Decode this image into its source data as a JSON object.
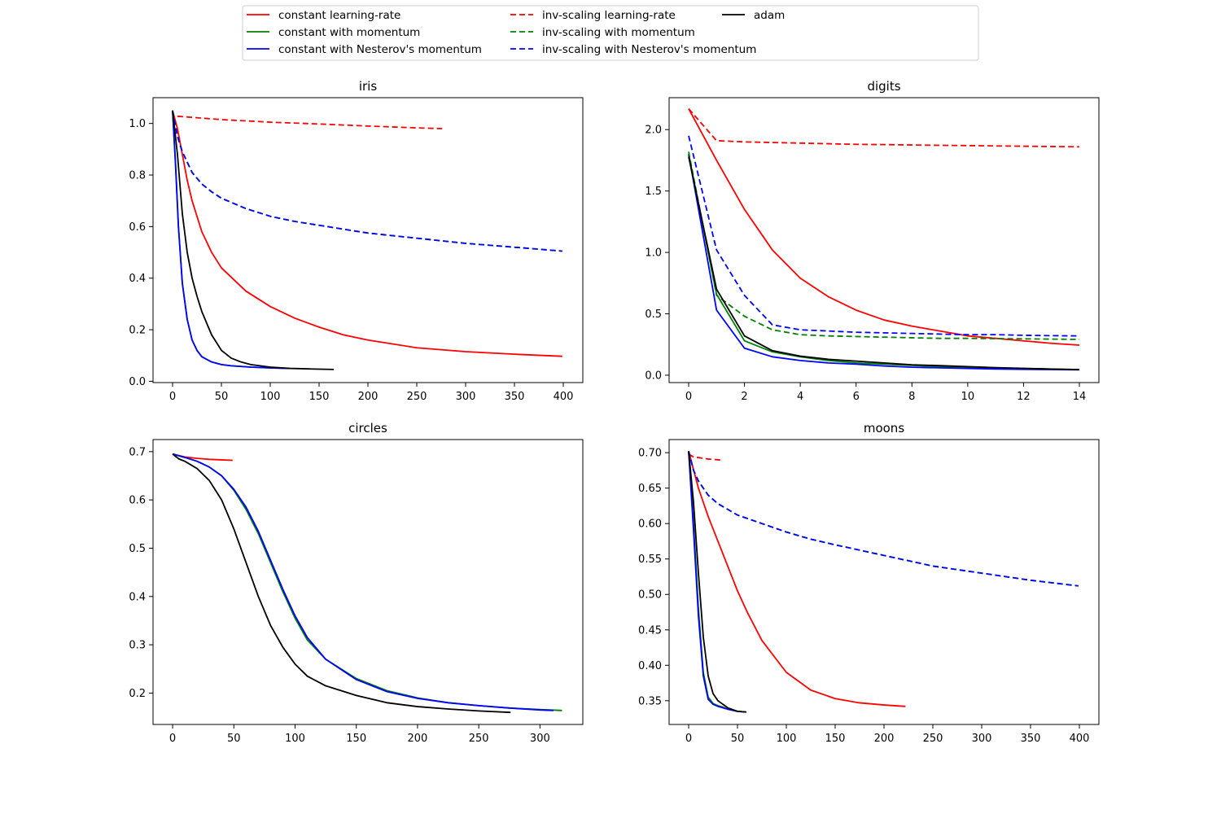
{
  "chart_data": [
    {
      "type": "line",
      "title": "iris",
      "xlabel": "",
      "ylabel": "",
      "xlim": [
        -20,
        420
      ],
      "ylim": [
        -0.005,
        1.1
      ],
      "xticks": [
        0,
        50,
        100,
        150,
        200,
        250,
        300,
        350,
        400
      ],
      "yticks": [
        0.0,
        0.2,
        0.4,
        0.6,
        0.8,
        1.0
      ],
      "ytick_decimals": 1,
      "series": [
        {
          "style": "constant-lr",
          "x": [
            0,
            5,
            10,
            15,
            20,
            30,
            40,
            50,
            75,
            100,
            125,
            150,
            175,
            200,
            250,
            300,
            350,
            399
          ],
          "y": [
            1.05,
            0.98,
            0.88,
            0.78,
            0.7,
            0.58,
            0.5,
            0.44,
            0.35,
            0.29,
            0.245,
            0.21,
            0.18,
            0.16,
            0.13,
            0.115,
            0.105,
            0.097
          ]
        },
        {
          "style": "const-mom",
          "x": [
            0,
            3,
            6,
            10,
            15,
            20,
            25,
            30,
            40,
            50,
            60,
            80,
            100,
            120
          ],
          "y": [
            1.05,
            0.85,
            0.6,
            0.38,
            0.24,
            0.16,
            0.12,
            0.095,
            0.075,
            0.065,
            0.06,
            0.055,
            0.052,
            0.05
          ]
        },
        {
          "style": "const-nest",
          "x": [
            0,
            3,
            6,
            10,
            15,
            20,
            25,
            30,
            40,
            50,
            60,
            80,
            100,
            120
          ],
          "y": [
            1.05,
            0.84,
            0.6,
            0.38,
            0.24,
            0.16,
            0.12,
            0.095,
            0.075,
            0.065,
            0.06,
            0.055,
            0.052,
            0.05
          ]
        },
        {
          "style": "inv-lr",
          "x": [
            5,
            50,
            100,
            150,
            200,
            250,
            276
          ],
          "y": [
            1.028,
            1.015,
            1.005,
            0.998,
            0.99,
            0.983,
            0.98
          ]
        },
        {
          "style": "inv-mom",
          "x": [
            0,
            5,
            10,
            15,
            20,
            30,
            40,
            50,
            75,
            100,
            125,
            150,
            200,
            250,
            300,
            350,
            399
          ],
          "y": [
            1.05,
            0.95,
            0.89,
            0.85,
            0.81,
            0.765,
            0.735,
            0.71,
            0.67,
            0.64,
            0.62,
            0.605,
            0.575,
            0.555,
            0.535,
            0.52,
            0.505
          ]
        },
        {
          "style": "inv-nest",
          "x": [
            0,
            5,
            10,
            15,
            20,
            30,
            40,
            50,
            75,
            100,
            125,
            150,
            200,
            250,
            300,
            350,
            399
          ],
          "y": [
            1.05,
            0.95,
            0.89,
            0.85,
            0.81,
            0.765,
            0.735,
            0.71,
            0.67,
            0.64,
            0.62,
            0.605,
            0.575,
            0.555,
            0.535,
            0.52,
            0.505
          ]
        },
        {
          "style": "adam",
          "x": [
            0,
            5,
            10,
            15,
            20,
            25,
            30,
            40,
            50,
            60,
            70,
            80,
            100,
            120,
            140,
            165
          ],
          "y": [
            1.05,
            0.88,
            0.65,
            0.5,
            0.4,
            0.33,
            0.27,
            0.18,
            0.12,
            0.09,
            0.075,
            0.065,
            0.055,
            0.05,
            0.048,
            0.046
          ]
        }
      ]
    },
    {
      "type": "line",
      "title": "digits",
      "xlabel": "",
      "ylabel": "",
      "xlim": [
        -0.7,
        14.7
      ],
      "ylim": [
        -0.06,
        2.26
      ],
      "xticks": [
        0,
        2,
        4,
        6,
        8,
        10,
        12,
        14
      ],
      "yticks": [
        0.0,
        0.5,
        1.0,
        1.5,
        2.0
      ],
      "ytick_decimals": 1,
      "series": [
        {
          "style": "constant-lr",
          "x": [
            0,
            1,
            2,
            3,
            4,
            5,
            6,
            7,
            8,
            9,
            10,
            11,
            12,
            13,
            14
          ],
          "y": [
            2.17,
            1.75,
            1.35,
            1.02,
            0.79,
            0.64,
            0.53,
            0.45,
            0.4,
            0.36,
            0.32,
            0.3,
            0.28,
            0.26,
            0.245
          ]
        },
        {
          "style": "const-mom",
          "x": [
            0,
            1,
            2,
            3,
            4,
            5,
            6,
            7,
            8,
            9,
            10,
            11,
            12,
            13,
            14
          ],
          "y": [
            1.8,
            0.66,
            0.28,
            0.19,
            0.15,
            0.12,
            0.1,
            0.09,
            0.08,
            0.07,
            0.065,
            0.06,
            0.055,
            0.05,
            0.045
          ]
        },
        {
          "style": "const-nest",
          "x": [
            0,
            1,
            2,
            3,
            4,
            5,
            6,
            7,
            8,
            9,
            10,
            11,
            12,
            13,
            14
          ],
          "y": [
            1.8,
            0.53,
            0.22,
            0.15,
            0.12,
            0.1,
            0.09,
            0.075,
            0.065,
            0.06,
            0.055,
            0.05,
            0.048,
            0.046,
            0.044
          ]
        },
        {
          "style": "inv-lr",
          "x": [
            0,
            1,
            2,
            3,
            4,
            5,
            6,
            7,
            8,
            9,
            10,
            11,
            12,
            13,
            14
          ],
          "y": [
            2.17,
            1.91,
            1.9,
            1.895,
            1.89,
            1.885,
            1.88,
            1.878,
            1.875,
            1.872,
            1.87,
            1.867,
            1.865,
            1.862,
            1.86
          ]
        },
        {
          "style": "inv-mom",
          "x": [
            0,
            1,
            2,
            3,
            4,
            5,
            6,
            7,
            8,
            9,
            10,
            11,
            12,
            13,
            14
          ],
          "y": [
            1.82,
            0.65,
            0.48,
            0.37,
            0.33,
            0.32,
            0.315,
            0.31,
            0.305,
            0.3,
            0.3,
            0.298,
            0.296,
            0.294,
            0.292
          ]
        },
        {
          "style": "inv-nest",
          "x": [
            0,
            1,
            2,
            3,
            4,
            5,
            6,
            7,
            8,
            9,
            10,
            11,
            12,
            13,
            14
          ],
          "y": [
            1.95,
            1.02,
            0.65,
            0.41,
            0.37,
            0.36,
            0.35,
            0.345,
            0.34,
            0.335,
            0.33,
            0.33,
            0.325,
            0.322,
            0.32
          ]
        },
        {
          "style": "adam",
          "x": [
            0,
            1,
            2,
            3,
            4,
            5,
            6,
            7,
            8,
            9,
            10,
            11,
            12,
            13,
            14
          ],
          "y": [
            1.78,
            0.7,
            0.32,
            0.2,
            0.155,
            0.13,
            0.115,
            0.1,
            0.085,
            0.078,
            0.07,
            0.062,
            0.056,
            0.05,
            0.046
          ]
        }
      ]
    },
    {
      "type": "line",
      "title": "circles",
      "xlabel": "",
      "ylabel": "",
      "xlim": [
        -16,
        335
      ],
      "ylim": [
        0.135,
        0.725
      ],
      "xticks": [
        0,
        50,
        100,
        150,
        200,
        250,
        300
      ],
      "yticks": [
        0.2,
        0.3,
        0.4,
        0.5,
        0.6,
        0.7
      ],
      "ytick_decimals": 1,
      "series": [
        {
          "style": "constant-lr",
          "x": [
            0,
            10,
            20,
            30,
            40,
            49
          ],
          "y": [
            0.695,
            0.689,
            0.686,
            0.684,
            0.683,
            0.682
          ]
        },
        {
          "style": "const-mom",
          "x": [
            0,
            10,
            20,
            30,
            40,
            50,
            60,
            70,
            80,
            90,
            100,
            110,
            125,
            150,
            175,
            200,
            225,
            250,
            275,
            300,
            318
          ],
          "y": [
            0.695,
            0.688,
            0.68,
            0.668,
            0.65,
            0.62,
            0.58,
            0.53,
            0.47,
            0.41,
            0.355,
            0.31,
            0.27,
            0.23,
            0.205,
            0.19,
            0.18,
            0.174,
            0.169,
            0.166,
            0.164
          ]
        },
        {
          "style": "const-nest",
          "x": [
            0,
            10,
            20,
            30,
            40,
            50,
            60,
            70,
            80,
            90,
            100,
            110,
            125,
            150,
            175,
            200,
            225,
            250,
            275,
            300,
            311
          ],
          "y": [
            0.695,
            0.688,
            0.68,
            0.668,
            0.65,
            0.622,
            0.585,
            0.535,
            0.475,
            0.415,
            0.36,
            0.315,
            0.27,
            0.228,
            0.203,
            0.189,
            0.18,
            0.174,
            0.169,
            0.165,
            0.164
          ]
        },
        {
          "style": "adam",
          "x": [
            0,
            5,
            10,
            20,
            30,
            40,
            50,
            60,
            70,
            80,
            90,
            100,
            110,
            125,
            150,
            175,
            200,
            225,
            250,
            276
          ],
          "y": [
            0.695,
            0.685,
            0.68,
            0.665,
            0.64,
            0.6,
            0.54,
            0.47,
            0.4,
            0.34,
            0.295,
            0.26,
            0.235,
            0.215,
            0.195,
            0.18,
            0.172,
            0.167,
            0.163,
            0.16
          ]
        }
      ]
    },
    {
      "type": "line",
      "title": "moons",
      "xlabel": "",
      "ylabel": "",
      "xlim": [
        -20,
        420
      ],
      "ylim": [
        0.3165,
        0.7185
      ],
      "xticks": [
        0,
        50,
        100,
        150,
        200,
        250,
        300,
        350,
        400
      ],
      "yticks": [
        0.35,
        0.4,
        0.45,
        0.5,
        0.55,
        0.6,
        0.65,
        0.7
      ],
      "ytick_decimals": 2,
      "series": [
        {
          "style": "constant-lr",
          "x": [
            0,
            10,
            20,
            30,
            40,
            50,
            60,
            75,
            100,
            125,
            150,
            175,
            200,
            222
          ],
          "y": [
            0.702,
            0.65,
            0.61,
            0.575,
            0.54,
            0.505,
            0.475,
            0.435,
            0.39,
            0.365,
            0.353,
            0.347,
            0.344,
            0.342
          ]
        },
        {
          "style": "const-mom",
          "x": [
            0,
            5,
            10,
            15,
            20,
            25,
            30,
            35,
            40,
            50,
            59
          ],
          "y": [
            0.702,
            0.6,
            0.48,
            0.39,
            0.355,
            0.346,
            0.343,
            0.341,
            0.338,
            0.335,
            0.334
          ]
        },
        {
          "style": "const-nest",
          "x": [
            0,
            5,
            10,
            15,
            20,
            25,
            30,
            35,
            40,
            50,
            59
          ],
          "y": [
            0.702,
            0.59,
            0.47,
            0.385,
            0.352,
            0.345,
            0.342,
            0.34,
            0.338,
            0.335,
            0.334
          ]
        },
        {
          "style": "inv-lr",
          "x": [
            0,
            5,
            10,
            20,
            30,
            35
          ],
          "y": [
            0.698,
            0.694,
            0.693,
            0.691,
            0.69,
            0.689
          ]
        },
        {
          "style": "inv-mom",
          "x": [
            0,
            5,
            10,
            20,
            30,
            40,
            50,
            75,
            100,
            125,
            150,
            200,
            250,
            300,
            350,
            399
          ],
          "y": [
            0.702,
            0.675,
            0.66,
            0.64,
            0.628,
            0.62,
            0.612,
            0.6,
            0.588,
            0.578,
            0.57,
            0.555,
            0.54,
            0.53,
            0.52,
            0.512
          ]
        },
        {
          "style": "inv-nest",
          "x": [
            0,
            5,
            10,
            20,
            30,
            40,
            50,
            75,
            100,
            125,
            150,
            200,
            250,
            300,
            350,
            399
          ],
          "y": [
            0.702,
            0.675,
            0.66,
            0.64,
            0.628,
            0.62,
            0.612,
            0.6,
            0.588,
            0.578,
            0.57,
            0.555,
            0.54,
            0.53,
            0.52,
            0.512
          ]
        },
        {
          "style": "adam",
          "x": [
            0,
            5,
            10,
            15,
            20,
            25,
            30,
            35,
            40,
            50,
            59
          ],
          "y": [
            0.702,
            0.63,
            0.53,
            0.44,
            0.385,
            0.36,
            0.35,
            0.345,
            0.34,
            0.335,
            0.334
          ]
        }
      ]
    }
  ],
  "legend": {
    "placement": "top-center",
    "items": [
      {
        "label": "constant learning-rate",
        "color": "#ff0000",
        "dash": "solid",
        "style": "constant-lr"
      },
      {
        "label": "constant with momentum",
        "color": "#008000",
        "dash": "solid",
        "style": "const-mom"
      },
      {
        "label": "constant with Nesterov's momentum",
        "color": "#0000ff",
        "dash": "solid",
        "style": "const-nest"
      },
      {
        "label": "inv-scaling learning-rate",
        "color": "#ff0000",
        "dash": "dashed",
        "style": "inv-lr"
      },
      {
        "label": "inv-scaling with momentum",
        "color": "#008000",
        "dash": "dashed",
        "style": "inv-mom"
      },
      {
        "label": "inv-scaling with Nesterov's momentum",
        "color": "#0000ff",
        "dash": "dashed",
        "style": "inv-nest"
      },
      {
        "label": "adam",
        "color": "#000000",
        "dash": "solid",
        "style": "adam"
      }
    ]
  }
}
